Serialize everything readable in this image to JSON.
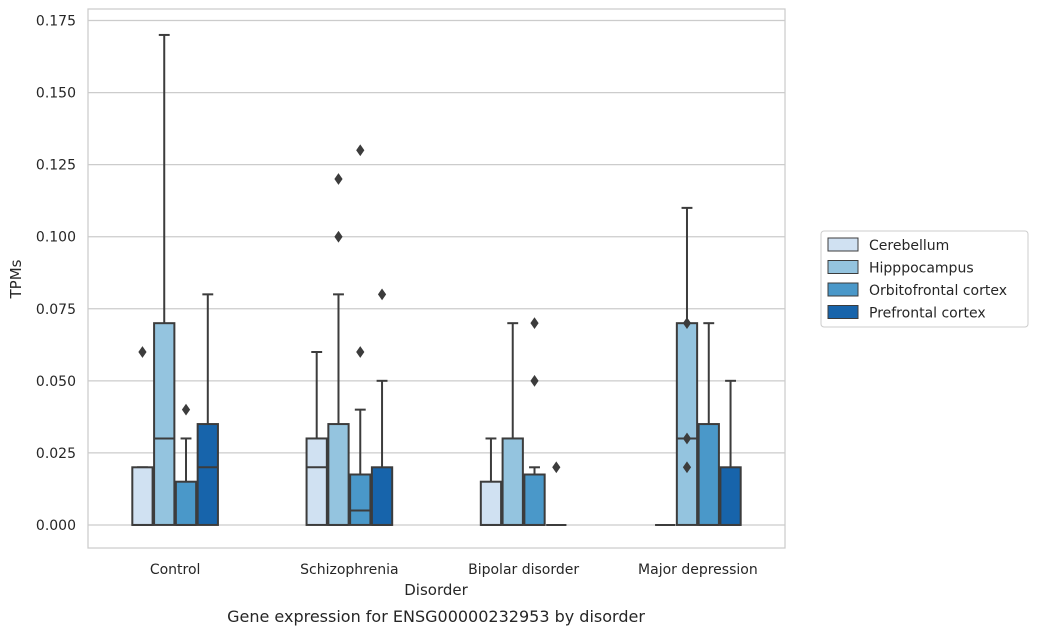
{
  "chart_data": {
    "type": "boxplot",
    "caption": "Gene expression for ENSG00000232953 by disorder",
    "xlabel": "Disorder",
    "ylabel": "TPMs",
    "ylim": [
      -0.008,
      0.179
    ],
    "yticks": [
      "0.000",
      "0.025",
      "0.050",
      "0.075",
      "0.100",
      "0.125",
      "0.150",
      "0.175"
    ],
    "grid": "horizontal",
    "legend_position": "right",
    "categories": [
      "Control",
      "Schizophrenia",
      "Bipolar disorder",
      "Major depression"
    ],
    "series": [
      {
        "name": "Cerebellum",
        "color": "#d0e1f2",
        "boxes": [
          {
            "category": "Control",
            "whislo": 0.0,
            "q1": 0.0,
            "med": 0.0,
            "q3": 0.02,
            "whishi": 0.02,
            "fliers": [
              0.06
            ]
          },
          {
            "category": "Schizophrenia",
            "whislo": 0.0,
            "q1": 0.0,
            "med": 0.02,
            "q3": 0.03,
            "whishi": 0.06,
            "fliers": []
          },
          {
            "category": "Bipolar disorder",
            "whislo": 0.0,
            "q1": 0.0,
            "med": 0.0,
            "q3": 0.015,
            "whishi": 0.03,
            "fliers": []
          },
          {
            "category": "Major depression",
            "whislo": 0.0,
            "q1": 0.0,
            "med": 0.0,
            "q3": 0.0,
            "whishi": 0.0,
            "fliers": []
          }
        ]
      },
      {
        "name": "Hipppocampus",
        "color": "#94c4df",
        "boxes": [
          {
            "category": "Control",
            "whislo": 0.0,
            "q1": 0.0,
            "med": 0.03,
            "q3": 0.07,
            "whishi": 0.17,
            "fliers": []
          },
          {
            "category": "Schizophrenia",
            "whislo": 0.0,
            "q1": 0.0,
            "med": 0.0,
            "q3": 0.035,
            "whishi": 0.08,
            "fliers": [
              0.1,
              0.12
            ]
          },
          {
            "category": "Bipolar disorder",
            "whislo": 0.0,
            "q1": 0.0,
            "med": 0.0,
            "q3": 0.03,
            "whishi": 0.07,
            "fliers": []
          },
          {
            "category": "Major depression",
            "whislo": 0.0,
            "q1": 0.0,
            "med": 0.03,
            "q3": 0.07,
            "whishi": 0.11,
            "fliers": [
              0.02,
              0.03,
              0.07
            ]
          }
        ]
      },
      {
        "name": "Orbitofrontal cortex",
        "color": "#4a98c9",
        "boxes": [
          {
            "category": "Control",
            "whislo": 0.0,
            "q1": 0.0,
            "med": 0.0,
            "q3": 0.015,
            "whishi": 0.03,
            "fliers": [
              0.04
            ]
          },
          {
            "category": "Schizophrenia",
            "whislo": 0.0,
            "q1": 0.0,
            "med": 0.005,
            "q3": 0.0175,
            "whishi": 0.04,
            "fliers": [
              0.06,
              0.13
            ]
          },
          {
            "category": "Bipolar disorder",
            "whislo": 0.0,
            "q1": 0.0,
            "med": 0.0,
            "q3": 0.0175,
            "whishi": 0.02,
            "fliers": [
              0.05,
              0.07
            ]
          },
          {
            "category": "Major depression",
            "whislo": 0.0,
            "q1": 0.0,
            "med": 0.0,
            "q3": 0.035,
            "whishi": 0.07,
            "fliers": []
          }
        ]
      },
      {
        "name": "Prefrontal cortex",
        "color": "#1764ab",
        "boxes": [
          {
            "category": "Control",
            "whislo": 0.0,
            "q1": 0.0,
            "med": 0.02,
            "q3": 0.035,
            "whishi": 0.08,
            "fliers": []
          },
          {
            "category": "Schizophrenia",
            "whislo": 0.0,
            "q1": 0.0,
            "med": 0.0,
            "q3": 0.02,
            "whishi": 0.05,
            "fliers": [
              0.08
            ]
          },
          {
            "category": "Bipolar disorder",
            "whislo": 0.0,
            "q1": 0.0,
            "med": 0.0,
            "q3": 0.0,
            "whishi": 0.0,
            "fliers": [
              0.02
            ]
          },
          {
            "category": "Major depression",
            "whislo": 0.0,
            "q1": 0.0,
            "med": 0.0,
            "q3": 0.02,
            "whishi": 0.05,
            "fliers": []
          }
        ]
      }
    ]
  }
}
